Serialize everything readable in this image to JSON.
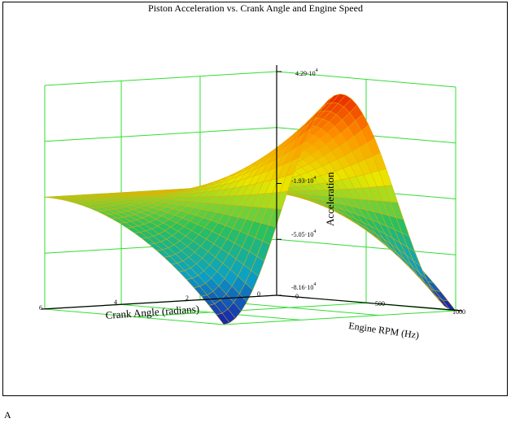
{
  "title": "Piston Acceleration vs. Crank Angle and Engine Speed",
  "caption": "A",
  "chart_data": {
    "type": "surface3d",
    "title": "Piston Acceleration vs. Crank Angle and Engine Speed",
    "xlabel": "Crank  Angle  (radians)",
    "ylabel": "Engine RPM (Hz)",
    "zlabel": "Acceleration",
    "x_ticks": [
      "6",
      "4",
      "2",
      "0"
    ],
    "y_ticks": [
      "0",
      "500",
      "1000"
    ],
    "z_ticks": [
      {
        "mant": "4.29·10",
        "exp": "4"
      },
      {
        "mant": "-1.93·10",
        "exp": "4"
      },
      {
        "mant": "-5.05·10",
        "exp": "4"
      },
      {
        "mant": "-8.16·10",
        "exp": "4"
      }
    ],
    "xlim": [
      0,
      6.283
    ],
    "ylim": [
      0,
      1000
    ],
    "zlim": [
      -81600,
      42900
    ],
    "surface": "a(theta, n) = -A·n²·cos(theta) (approximate)",
    "colormap": [
      "#1a1aa8",
      "#0aa0c8",
      "#28c060",
      "#e8e800",
      "#ff9000",
      "#e82000"
    ],
    "grid_color": "#33dd33"
  }
}
